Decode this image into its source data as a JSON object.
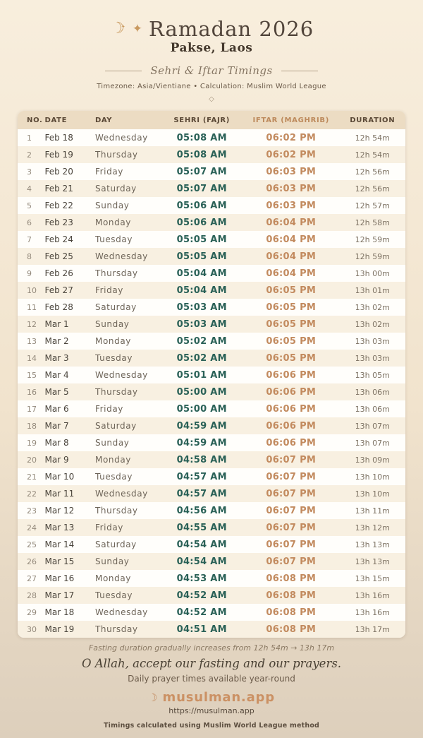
{
  "colors": {
    "accent_tan": "#c9995f",
    "sehri_time": "#2a6157",
    "iftar_time": "#c28a5e",
    "header_row_bg": "#ecdcc3",
    "card_bg": "#fffefb",
    "page_top": "#f8eedd",
    "page_bottom": "#ddcfbc"
  },
  "header": {
    "crescent_icon": "☾",
    "crescent_star_icon": "✦",
    "sparkle_icon": "✦",
    "title": "Ramadan 2026",
    "location": "Pakse, Laos",
    "subtitle": "Sehri & Iftar Timings",
    "meta": "Timezone: Asia/Vientiane • Calculation: Muslim World League",
    "divider_icon": "◇"
  },
  "table": {
    "columns": [
      "NO.",
      "DATE",
      "DAY",
      "SEHRI (FAJR)",
      "IFTAR (MAGHRIB)",
      "DURATION"
    ],
    "rows": [
      {
        "no": "1",
        "date": "Feb 18",
        "day": "Wednesday",
        "sehri": "05:08 AM",
        "iftar": "06:02 PM",
        "duration": "12h 54m"
      },
      {
        "no": "2",
        "date": "Feb 19",
        "day": "Thursday",
        "sehri": "05:08 AM",
        "iftar": "06:02 PM",
        "duration": "12h 54m"
      },
      {
        "no": "3",
        "date": "Feb 20",
        "day": "Friday",
        "sehri": "05:07 AM",
        "iftar": "06:03 PM",
        "duration": "12h 56m"
      },
      {
        "no": "4",
        "date": "Feb 21",
        "day": "Saturday",
        "sehri": "05:07 AM",
        "iftar": "06:03 PM",
        "duration": "12h 56m"
      },
      {
        "no": "5",
        "date": "Feb 22",
        "day": "Sunday",
        "sehri": "05:06 AM",
        "iftar": "06:03 PM",
        "duration": "12h 57m"
      },
      {
        "no": "6",
        "date": "Feb 23",
        "day": "Monday",
        "sehri": "05:06 AM",
        "iftar": "06:04 PM",
        "duration": "12h 58m"
      },
      {
        "no": "7",
        "date": "Feb 24",
        "day": "Tuesday",
        "sehri": "05:05 AM",
        "iftar": "06:04 PM",
        "duration": "12h 59m"
      },
      {
        "no": "8",
        "date": "Feb 25",
        "day": "Wednesday",
        "sehri": "05:05 AM",
        "iftar": "06:04 PM",
        "duration": "12h 59m"
      },
      {
        "no": "9",
        "date": "Feb 26",
        "day": "Thursday",
        "sehri": "05:04 AM",
        "iftar": "06:04 PM",
        "duration": "13h 00m"
      },
      {
        "no": "10",
        "date": "Feb 27",
        "day": "Friday",
        "sehri": "05:04 AM",
        "iftar": "06:05 PM",
        "duration": "13h 01m"
      },
      {
        "no": "11",
        "date": "Feb 28",
        "day": "Saturday",
        "sehri": "05:03 AM",
        "iftar": "06:05 PM",
        "duration": "13h 02m"
      },
      {
        "no": "12",
        "date": "Mar 1",
        "day": "Sunday",
        "sehri": "05:03 AM",
        "iftar": "06:05 PM",
        "duration": "13h 02m"
      },
      {
        "no": "13",
        "date": "Mar 2",
        "day": "Monday",
        "sehri": "05:02 AM",
        "iftar": "06:05 PM",
        "duration": "13h 03m"
      },
      {
        "no": "14",
        "date": "Mar 3",
        "day": "Tuesday",
        "sehri": "05:02 AM",
        "iftar": "06:05 PM",
        "duration": "13h 03m"
      },
      {
        "no": "15",
        "date": "Mar 4",
        "day": "Wednesday",
        "sehri": "05:01 AM",
        "iftar": "06:06 PM",
        "duration": "13h 05m"
      },
      {
        "no": "16",
        "date": "Mar 5",
        "day": "Thursday",
        "sehri": "05:00 AM",
        "iftar": "06:06 PM",
        "duration": "13h 06m"
      },
      {
        "no": "17",
        "date": "Mar 6",
        "day": "Friday",
        "sehri": "05:00 AM",
        "iftar": "06:06 PM",
        "duration": "13h 06m"
      },
      {
        "no": "18",
        "date": "Mar 7",
        "day": "Saturday",
        "sehri": "04:59 AM",
        "iftar": "06:06 PM",
        "duration": "13h 07m"
      },
      {
        "no": "19",
        "date": "Mar 8",
        "day": "Sunday",
        "sehri": "04:59 AM",
        "iftar": "06:06 PM",
        "duration": "13h 07m"
      },
      {
        "no": "20",
        "date": "Mar 9",
        "day": "Monday",
        "sehri": "04:58 AM",
        "iftar": "06:07 PM",
        "duration": "13h 09m"
      },
      {
        "no": "21",
        "date": "Mar 10",
        "day": "Tuesday",
        "sehri": "04:57 AM",
        "iftar": "06:07 PM",
        "duration": "13h 10m"
      },
      {
        "no": "22",
        "date": "Mar 11",
        "day": "Wednesday",
        "sehri": "04:57 AM",
        "iftar": "06:07 PM",
        "duration": "13h 10m"
      },
      {
        "no": "23",
        "date": "Mar 12",
        "day": "Thursday",
        "sehri": "04:56 AM",
        "iftar": "06:07 PM",
        "duration": "13h 11m"
      },
      {
        "no": "24",
        "date": "Mar 13",
        "day": "Friday",
        "sehri": "04:55 AM",
        "iftar": "06:07 PM",
        "duration": "13h 12m"
      },
      {
        "no": "25",
        "date": "Mar 14",
        "day": "Saturday",
        "sehri": "04:54 AM",
        "iftar": "06:07 PM",
        "duration": "13h 13m"
      },
      {
        "no": "26",
        "date": "Mar 15",
        "day": "Sunday",
        "sehri": "04:54 AM",
        "iftar": "06:07 PM",
        "duration": "13h 13m"
      },
      {
        "no": "27",
        "date": "Mar 16",
        "day": "Monday",
        "sehri": "04:53 AM",
        "iftar": "06:08 PM",
        "duration": "13h 15m"
      },
      {
        "no": "28",
        "date": "Mar 17",
        "day": "Tuesday",
        "sehri": "04:52 AM",
        "iftar": "06:08 PM",
        "duration": "13h 16m"
      },
      {
        "no": "29",
        "date": "Mar 18",
        "day": "Wednesday",
        "sehri": "04:52 AM",
        "iftar": "06:08 PM",
        "duration": "13h 16m"
      },
      {
        "no": "30",
        "date": "Mar 19",
        "day": "Thursday",
        "sehri": "04:51 AM",
        "iftar": "06:08 PM",
        "duration": "13h 17m"
      }
    ]
  },
  "footer": {
    "note": "Fasting duration gradually increases from 12h 54m → 13h 17m",
    "dua": "O Allah, accept our fasting and our prayers.",
    "availability": "Daily prayer times available year-round",
    "brand_icon": "☾",
    "brand": "musulman.app",
    "url": "https://musulman.app",
    "method": "Timings calculated using Muslim World League method"
  }
}
